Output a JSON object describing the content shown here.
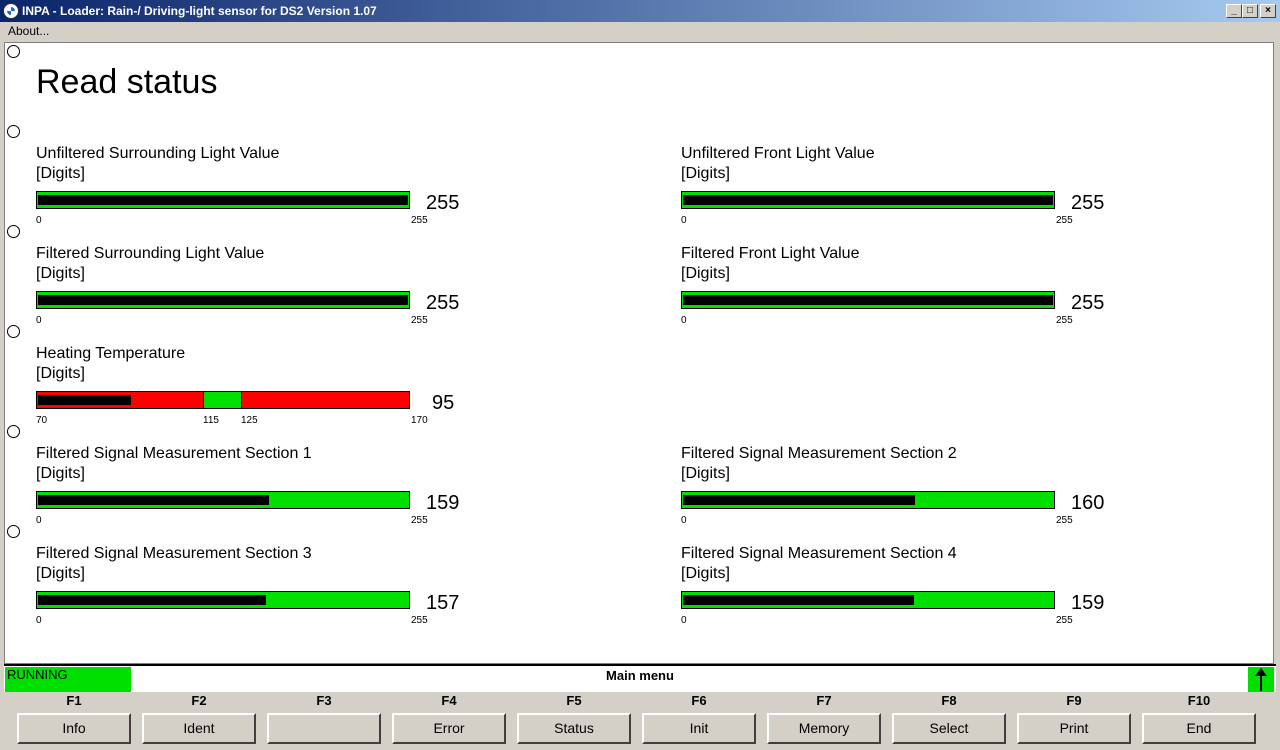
{
  "window": {
    "title": "INPA - Loader:  Rain-/ Driving-light sensor for DS2 Version 1.07",
    "menu": [
      "About..."
    ],
    "buttons": {
      "minimize": "_",
      "maximize": "□",
      "close": "×"
    }
  },
  "page_title": "Read status",
  "gauges": [
    {
      "label": "Unfiltered Surrounding Light Value",
      "unit": "[Digits]",
      "value": 255,
      "min": 0,
      "max": 255,
      "value_text": "255",
      "min_text": "0",
      "max_text": "255"
    },
    {
      "label": "Unfiltered Front Light Value",
      "unit": "[Digits]",
      "value": 255,
      "min": 0,
      "max": 255,
      "value_text": "255",
      "min_text": "0",
      "max_text": "255"
    },
    {
      "label": "Filtered Surrounding Light Value",
      "unit": "[Digits]",
      "value": 255,
      "min": 0,
      "max": 255,
      "value_text": "255",
      "min_text": "0",
      "max_text": "255"
    },
    {
      "label": "Filtered Front Light Value",
      "unit": "[Digits]",
      "value": 255,
      "min": 0,
      "max": 255,
      "value_text": "255",
      "min_text": "0",
      "max_text": "255"
    },
    {
      "label": "Filtered Signal Measurement Section 1",
      "unit": "[Digits]",
      "value": 159,
      "min": 0,
      "max": 255,
      "value_text": "159",
      "min_text": "0",
      "max_text": "255"
    },
    {
      "label": "Filtered Signal Measurement Section 2",
      "unit": "[Digits]",
      "value": 160,
      "min": 0,
      "max": 255,
      "value_text": "160",
      "min_text": "0",
      "max_text": "255"
    },
    {
      "label": "Filtered Signal Measurement Section 3",
      "unit": "[Digits]",
      "value": 157,
      "min": 0,
      "max": 255,
      "value_text": "157",
      "min_text": "0",
      "max_text": "255"
    },
    {
      "label": "Filtered Signal Measurement Section 4",
      "unit": "[Digits]",
      "value": 159,
      "min": 0,
      "max": 255,
      "value_text": "159",
      "min_text": "0",
      "max_text": "255"
    }
  ],
  "temperature": {
    "label": "Heating Temperature",
    "unit": "[Digits]",
    "value": 95,
    "value_text": "95",
    "min": 70,
    "max": 170,
    "ok_low": 115,
    "ok_high": 125,
    "tick_labels": [
      "70",
      "115",
      "125",
      "170"
    ]
  },
  "colors": {
    "ok": "#00e000",
    "alarm": "#ff0000",
    "fill": "#000000"
  },
  "status": {
    "state": "RUNNING",
    "menu_title": "Main menu",
    "up_icon": "up-arrow-icon"
  },
  "fkeys": [
    {
      "key": "F1",
      "label": "Info"
    },
    {
      "key": "F2",
      "label": "Ident"
    },
    {
      "key": "F3",
      "label": ""
    },
    {
      "key": "F4",
      "label": "Error"
    },
    {
      "key": "F5",
      "label": "Status"
    },
    {
      "key": "F6",
      "label": "Init"
    },
    {
      "key": "F7",
      "label": "Memory"
    },
    {
      "key": "F8",
      "label": "Select"
    },
    {
      "key": "F9",
      "label": "Print"
    },
    {
      "key": "F10",
      "label": "End"
    }
  ]
}
